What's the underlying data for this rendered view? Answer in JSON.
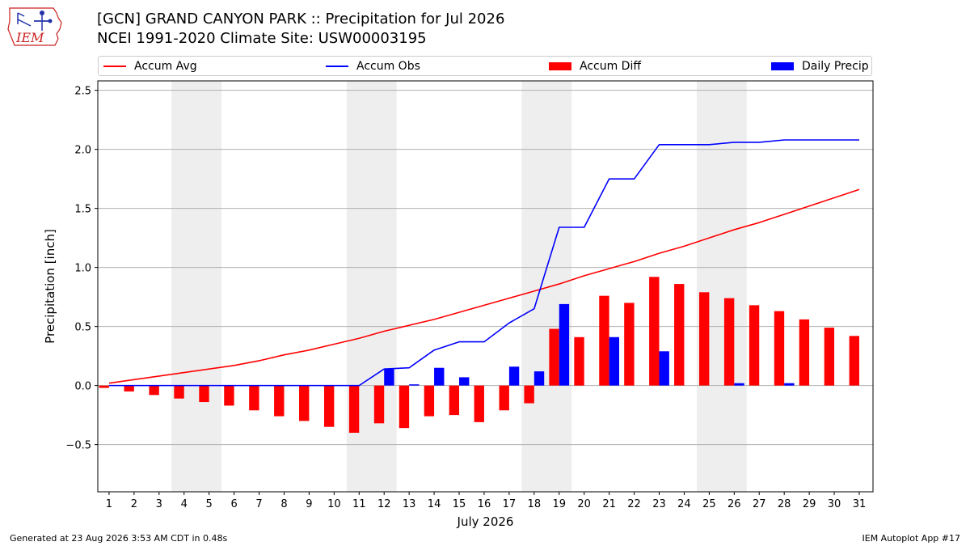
{
  "header": {
    "title_line1": "[GCN] GRAND CANYON PARK :: Precipitation for Jul 2026",
    "title_line2": "NCEI 1991-2020 Climate Site: USW00003195",
    "logo_text": "IEM"
  },
  "legend": {
    "items": [
      {
        "label": "Accum Avg",
        "color": "#ff0000",
        "kind": "line"
      },
      {
        "label": "Accum Obs",
        "color": "#0000ff",
        "kind": "line"
      },
      {
        "label": "Accum Diff",
        "color": "#ff0000",
        "kind": "bar"
      },
      {
        "label": "Daily Precip",
        "color": "#0000ff",
        "kind": "bar"
      }
    ]
  },
  "footer": {
    "left": "Generated at 23 Aug 2026 3:53 AM CDT in 0.48s",
    "right": "IEM Autoplot App #17"
  },
  "chart_data": {
    "type": "bar",
    "xlabel": "July 2026",
    "ylabel": "Precipitation [inch]",
    "ylim": [
      -0.9,
      2.58
    ],
    "xlim": [
      0.55,
      31.55
    ],
    "yticks": [
      -0.5,
      0.0,
      0.5,
      1.0,
      1.5,
      2.0,
      2.5
    ],
    "ytick_labels": [
      "−0.5",
      "0.0",
      "0.5",
      "1.0",
      "1.5",
      "2.0",
      "2.5"
    ],
    "categories": [
      "1",
      "2",
      "3",
      "4",
      "5",
      "6",
      "7",
      "8",
      "9",
      "10",
      "11",
      "12",
      "13",
      "14",
      "15",
      "16",
      "17",
      "18",
      "19",
      "20",
      "21",
      "22",
      "23",
      "24",
      "25",
      "26",
      "27",
      "28",
      "29",
      "30",
      "31"
    ],
    "grid": "horizontal",
    "weekend_shading": [
      [
        4,
        5
      ],
      [
        11,
        12
      ],
      [
        18,
        19
      ],
      [
        25,
        26
      ]
    ],
    "shade_color": "#eeeeee",
    "series": [
      {
        "name": "Accum Avg",
        "kind": "line",
        "color": "#ff0000",
        "values": [
          0.02,
          0.05,
          0.08,
          0.11,
          0.14,
          0.17,
          0.21,
          0.26,
          0.3,
          0.35,
          0.4,
          0.46,
          0.51,
          0.56,
          0.62,
          0.68,
          0.74,
          0.8,
          0.86,
          0.93,
          0.99,
          1.05,
          1.12,
          1.18,
          1.25,
          1.32,
          1.38,
          1.45,
          1.52,
          1.59,
          1.66
        ]
      },
      {
        "name": "Accum Obs",
        "kind": "line",
        "color": "#0000ff",
        "values": [
          0,
          0,
          0,
          0,
          0,
          0,
          0,
          0,
          0,
          0,
          0,
          0.14,
          0.15,
          0.3,
          0.37,
          0.37,
          0.53,
          0.65,
          1.34,
          1.34,
          1.75,
          1.75,
          2.04,
          2.04,
          2.04,
          2.06,
          2.06,
          2.08,
          2.08,
          2.08,
          2.08
        ]
      },
      {
        "name": "Accum Diff",
        "kind": "bar",
        "color": "#ff0000",
        "values": [
          -0.02,
          -0.05,
          -0.08,
          -0.11,
          -0.14,
          -0.17,
          -0.21,
          -0.26,
          -0.3,
          -0.35,
          -0.4,
          -0.32,
          -0.36,
          -0.26,
          -0.25,
          -0.31,
          -0.21,
          -0.15,
          0.48,
          0.41,
          0.76,
          0.7,
          0.92,
          0.86,
          0.79,
          0.74,
          0.68,
          0.63,
          0.56,
          0.49,
          0.42
        ]
      },
      {
        "name": "Daily Precip",
        "kind": "bar",
        "color": "#0000ff",
        "values": [
          0,
          0,
          0,
          0,
          0,
          0,
          0,
          0,
          0,
          0,
          0,
          0.14,
          0.01,
          0.15,
          0.07,
          0,
          0.16,
          0.12,
          0.69,
          0,
          0.41,
          0,
          0.29,
          0,
          0,
          0.02,
          0,
          0.02,
          0,
          0,
          0
        ]
      }
    ]
  }
}
